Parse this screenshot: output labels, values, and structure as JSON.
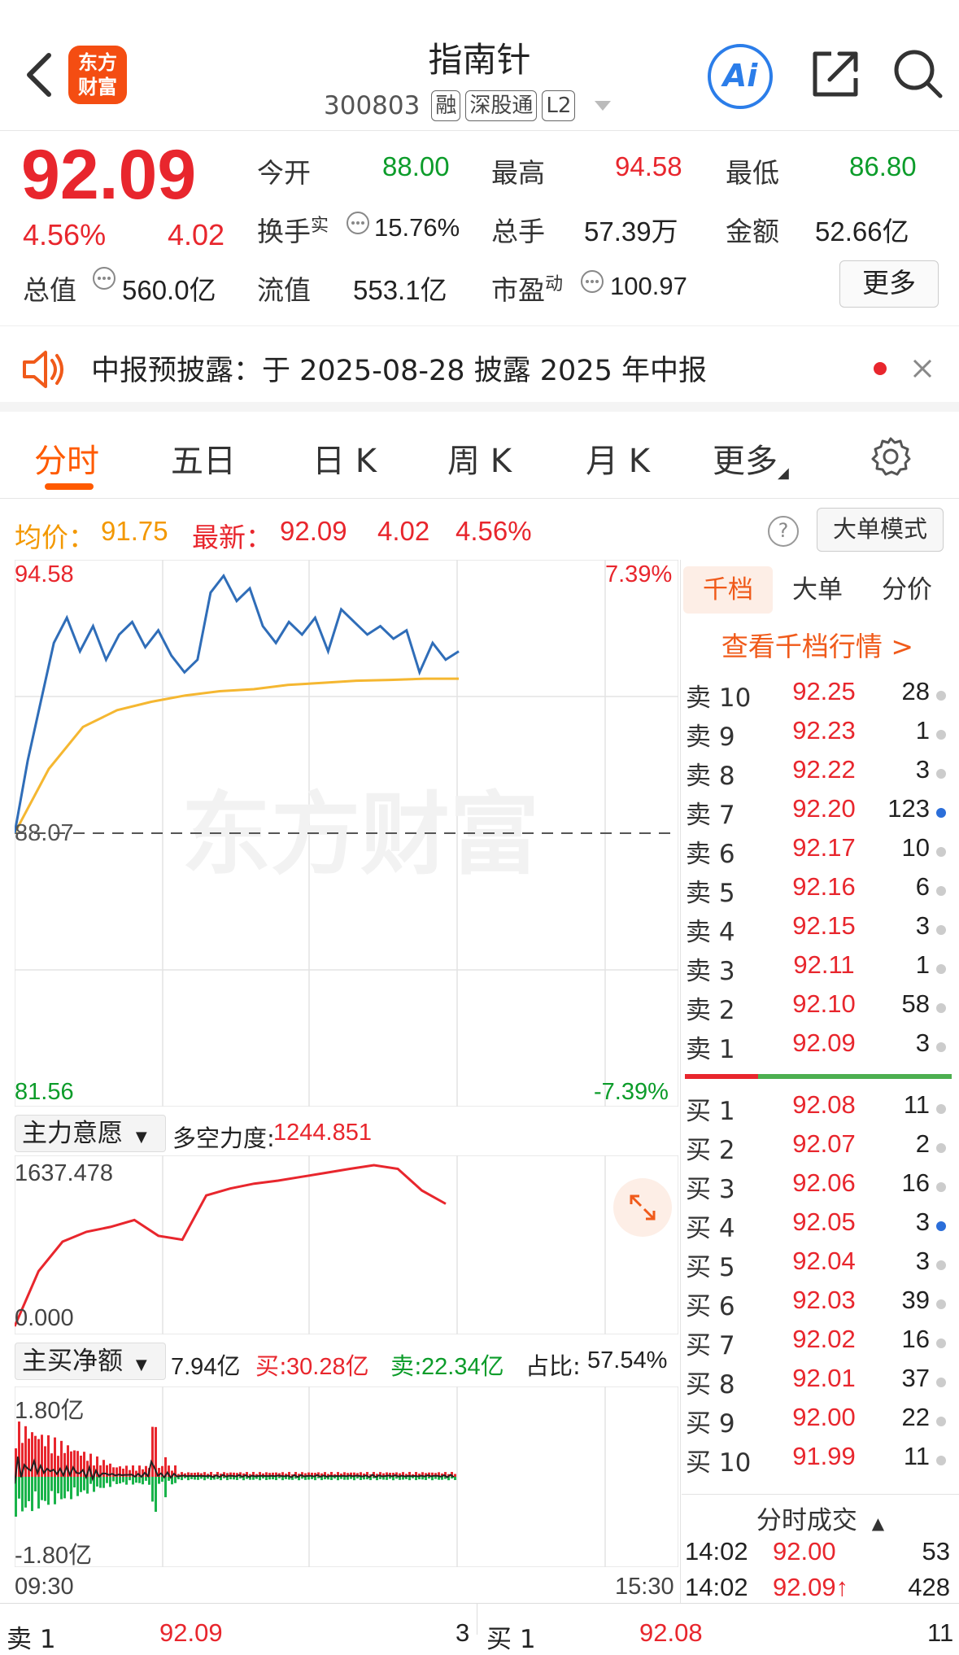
{
  "header": {
    "title": "指南针",
    "logo_line1": "东方",
    "logo_line2": "财富",
    "code": "300803",
    "tags": [
      "融",
      "深股通",
      "L2"
    ],
    "ai_label": "Ai"
  },
  "quote": {
    "price": "92.09",
    "change_pct": "4.56%",
    "change": "4.02",
    "open_label": "今开",
    "open": "88.00",
    "high_label": "最高",
    "high": "94.58",
    "low_label": "最低",
    "low": "86.80",
    "turnover_label": "换手",
    "turnover_sup": "实",
    "turnover": "15.76%",
    "volume_label": "总手",
    "volume": "57.39万",
    "amount_label": "金额",
    "amount": "52.66亿",
    "mktcap_label": "总值",
    "mktcap": "560.0亿",
    "float_label": "流值",
    "float": "553.1亿",
    "pe_label": "市盈",
    "pe_sup": "动",
    "pe": "100.97",
    "more_label": "更多"
  },
  "notice": {
    "text": "中报预披露：于 2025-08-28 披露 2025 年中报"
  },
  "tabs": [
    "分时",
    "五日",
    "日 K",
    "周 K",
    "月 K",
    "更多"
  ],
  "info": {
    "avg_label": "均价：",
    "avg": "91.75",
    "latest_label": "最新：",
    "latest": "92.09",
    "latest_change": "4.02",
    "latest_pct": "4.56%",
    "help": "?",
    "mode_label": "大单模式"
  },
  "chart_data": [
    {
      "type": "line",
      "series": [
        {
          "values": [
            88.07,
            89.8,
            91.2,
            92.6,
            93.2,
            92.4,
            93.0,
            92.2,
            92.8,
            93.1,
            92.5,
            92.9,
            92.3,
            91.9,
            92.2,
            93.8,
            94.2,
            93.6,
            93.9,
            93.0,
            92.6,
            93.1,
            92.8,
            93.2,
            92.4,
            93.4,
            93.1,
            92.8,
            93.0,
            92.7,
            92.9,
            91.9,
            92.6,
            92.2,
            92.4
          ]
        },
        {
          "values": [
            88.07,
            89.6,
            90.6,
            91.0,
            91.2,
            91.35,
            91.45,
            91.5,
            91.6,
            91.65,
            91.7,
            91.72,
            91.75,
            91.75
          ]
        }
      ],
      "left_ticks": [
        "94.58",
        "88.07",
        "81.56"
      ],
      "right_ticks": [
        "7.39%",
        "-7.39%"
      ],
      "watermark": "东方财富"
    },
    {
      "type": "line",
      "title_select": "主力意愿",
      "stat_label": "多空力度:",
      "stat_value": "1244.851",
      "ticks": [
        "1637.478",
        "0.000"
      ],
      "values": [
        0,
        560,
        860,
        960,
        1010,
        1080,
        920,
        880,
        1330,
        1400,
        1450,
        1480,
        1520,
        1560,
        1600,
        1637.478,
        1600,
        1380,
        1244.851
      ]
    },
    {
      "type": "bar",
      "title_select": "主买净额",
      "net": "7.94亿",
      "buy_label": "买:",
      "buy": "30.28亿",
      "sell_label": "卖:",
      "sell": "22.34亿",
      "ratio_label": "占比:",
      "ratio": "57.54%",
      "ticks": [
        "1.80亿",
        "-1.80亿"
      ],
      "x_ticks": [
        "09:30",
        "15:30"
      ]
    }
  ],
  "orderbook": {
    "tabs": [
      "千档",
      "大单",
      "分价"
    ],
    "link": "查看千档行情 >",
    "asks": [
      {
        "label": "卖 10",
        "price": "92.25",
        "vol": "28"
      },
      {
        "label": "卖 9",
        "price": "92.23",
        "vol": "1"
      },
      {
        "label": "卖 8",
        "price": "92.22",
        "vol": "3"
      },
      {
        "label": "卖 7",
        "price": "92.20",
        "vol": "123"
      },
      {
        "label": "卖 6",
        "price": "92.17",
        "vol": "10"
      },
      {
        "label": "卖 5",
        "price": "92.16",
        "vol": "6"
      },
      {
        "label": "卖 4",
        "price": "92.15",
        "vol": "3"
      },
      {
        "label": "卖 3",
        "price": "92.11",
        "vol": "1"
      },
      {
        "label": "卖 2",
        "price": "92.10",
        "vol": "58"
      },
      {
        "label": "卖 1",
        "price": "92.09",
        "vol": "3"
      }
    ],
    "bids": [
      {
        "label": "买 1",
        "price": "92.08",
        "vol": "11"
      },
      {
        "label": "买 2",
        "price": "92.07",
        "vol": "2"
      },
      {
        "label": "买 3",
        "price": "92.06",
        "vol": "16"
      },
      {
        "label": "买 4",
        "price": "92.05",
        "vol": "3"
      },
      {
        "label": "买 5",
        "price": "92.04",
        "vol": "3"
      },
      {
        "label": "买 6",
        "price": "92.03",
        "vol": "39"
      },
      {
        "label": "买 7",
        "price": "92.02",
        "vol": "16"
      },
      {
        "label": "买 8",
        "price": "92.01",
        "vol": "37"
      },
      {
        "label": "买 9",
        "price": "92.00",
        "vol": "22"
      },
      {
        "label": "买 10",
        "price": "91.99",
        "vol": "11"
      }
    ],
    "trades_label": "分时成交",
    "trades": [
      {
        "time": "14:02",
        "price": "92.00",
        "vol": "53"
      },
      {
        "time": "14:02",
        "price": "92.09↑",
        "vol": "428"
      }
    ]
  },
  "bottom": {
    "ask1_label": "卖 1",
    "ask1_price": "92.09",
    "ask1_vol": "3",
    "bid1_label": "买 1",
    "bid1_price": "92.08",
    "bid1_vol": "11"
  }
}
